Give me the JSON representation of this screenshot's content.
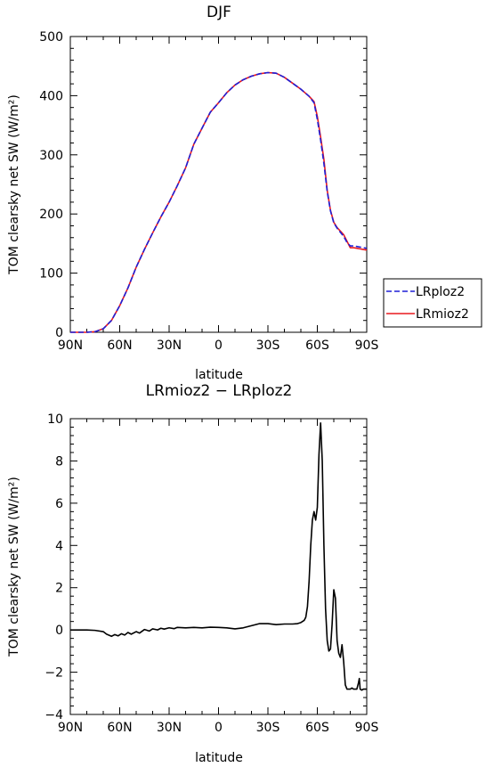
{
  "chart_data": [
    {
      "type": "line",
      "title": "DJF",
      "xlabel": "latitude",
      "ylabel": "TOM clearsky net SW (W/m²)",
      "xlim": [
        -90,
        90
      ],
      "ylim": [
        0,
        500
      ],
      "x_ticks": [
        -90,
        -60,
        -30,
        0,
        30,
        60,
        90
      ],
      "x_tick_labels": [
        "90N",
        "60N",
        "30N",
        "0",
        "30S",
        "60S",
        "90S"
      ],
      "y_ticks": [
        0,
        100,
        200,
        300,
        400,
        500
      ],
      "y_tick_labels": [
        "0",
        "100",
        "200",
        "300",
        "400",
        "500"
      ],
      "grid": false,
      "legend_position": "right, outside plot",
      "series": [
        {
          "name": "LRploz2",
          "color": "#1f1fd6",
          "dash": "dashed",
          "x": [
            -90,
            -80,
            -75,
            -70,
            -65,
            -60,
            -55,
            -50,
            -45,
            -40,
            -35,
            -30,
            -25,
            -20,
            -15,
            -10,
            -5,
            0,
            5,
            10,
            15,
            20,
            25,
            30,
            35,
            40,
            45,
            50,
            55,
            58,
            60,
            62,
            64,
            66,
            68,
            70,
            72,
            74,
            76,
            78,
            80,
            82,
            84,
            86,
            88,
            90
          ],
          "y": [
            0,
            0,
            1,
            6,
            20,
            45,
            75,
            110,
            140,
            168,
            195,
            220,
            248,
            278,
            318,
            345,
            372,
            388,
            405,
            418,
            427,
            433,
            437,
            439,
            438,
            431,
            421,
            411,
            399,
            388,
            360,
            325,
            285,
            238,
            205,
            185,
            176,
            169,
            162,
            152,
            146,
            146,
            145,
            144,
            143,
            142
          ]
        },
        {
          "name": "LRmioz2",
          "color": "#e8191f",
          "dash": "solid",
          "x": [
            -90,
            -80,
            -75,
            -70,
            -65,
            -60,
            -55,
            -50,
            -45,
            -40,
            -35,
            -30,
            -25,
            -20,
            -15,
            -10,
            -5,
            0,
            5,
            10,
            15,
            20,
            25,
            30,
            35,
            40,
            45,
            50,
            55,
            58,
            60,
            62,
            64,
            66,
            68,
            70,
            72,
            74,
            76,
            78,
            80,
            82,
            84,
            86,
            88,
            90
          ],
          "y": [
            0,
            0,
            1,
            6,
            20,
            45,
            75,
            110,
            140,
            168,
            195,
            220,
            248,
            278,
            318,
            345,
            372,
            388,
            405,
            418,
            427,
            433,
            437,
            439,
            438,
            431,
            421,
            411,
            399,
            390,
            365,
            330,
            292,
            240,
            206,
            186,
            177,
            171,
            165,
            154,
            143,
            143,
            142,
            141,
            140,
            139
          ]
        }
      ]
    },
    {
      "type": "line",
      "title": "LRmioz2 − LRploz2",
      "xlabel": "latitude",
      "ylabel": "TOM clearsky net SW (W/m²)",
      "xlim": [
        -90,
        90
      ],
      "ylim": [
        -4,
        10
      ],
      "x_ticks": [
        -90,
        -60,
        -30,
        0,
        30,
        60,
        90
      ],
      "x_tick_labels": [
        "90N",
        "60N",
        "30N",
        "0",
        "30S",
        "60S",
        "90S"
      ],
      "y_ticks": [
        -4,
        -2,
        0,
        2,
        4,
        6,
        8,
        10
      ],
      "y_tick_labels": [
        "−4",
        "−2",
        "0",
        "2",
        "4",
        "6",
        "8",
        "10"
      ],
      "grid": false,
      "series": [
        {
          "color": "#000000",
          "dash": "solid",
          "x": [
            -90,
            -80,
            -75,
            -70,
            -68,
            -65,
            -63,
            -61,
            -59,
            -57,
            -55,
            -53,
            -50,
            -48,
            -45,
            -42,
            -40,
            -37,
            -35,
            -33,
            -30,
            -27,
            -25,
            -20,
            -15,
            -10,
            -5,
            0,
            5,
            10,
            15,
            20,
            25,
            30,
            35,
            40,
            45,
            48,
            50,
            52,
            53,
            54,
            55,
            56,
            57,
            58,
            59,
            60,
            61,
            62,
            63,
            64,
            64.5,
            65,
            66,
            67,
            68,
            69,
            70,
            71,
            72,
            73,
            74,
            75,
            76,
            77,
            78,
            79,
            80,
            81,
            82,
            84,
            85,
            85.5,
            86,
            87,
            88,
            90
          ],
          "y": [
            0,
            0,
            -0.02,
            -0.08,
            -0.2,
            -0.3,
            -0.22,
            -0.28,
            -0.18,
            -0.24,
            -0.12,
            -0.2,
            -0.08,
            -0.15,
            0.02,
            -0.05,
            0.05,
            0.0,
            0.08,
            0.04,
            0.1,
            0.06,
            0.12,
            0.1,
            0.12,
            0.1,
            0.13,
            0.12,
            0.1,
            0.05,
            0.1,
            0.2,
            0.3,
            0.3,
            0.25,
            0.28,
            0.28,
            0.3,
            0.35,
            0.45,
            0.6,
            1.1,
            2.3,
            4.0,
            5.2,
            5.6,
            5.2,
            5.8,
            8.3,
            9.8,
            8.0,
            4.0,
            2.5,
            1.0,
            -0.5,
            -1.0,
            -0.9,
            0.3,
            1.9,
            1.5,
            -0.5,
            -1.1,
            -1.3,
            -0.7,
            -1.5,
            -2.6,
            -2.8,
            -2.8,
            -2.8,
            -2.75,
            -2.8,
            -2.8,
            -2.5,
            -2.3,
            -2.8,
            -2.85,
            -2.8,
            -2.8
          ]
        }
      ]
    }
  ],
  "legend": {
    "items": [
      {
        "label": "LRploz2",
        "color": "#1f1fd6",
        "dash": "dashed"
      },
      {
        "label": "LRmioz2",
        "color": "#e8191f",
        "dash": "solid"
      }
    ]
  }
}
